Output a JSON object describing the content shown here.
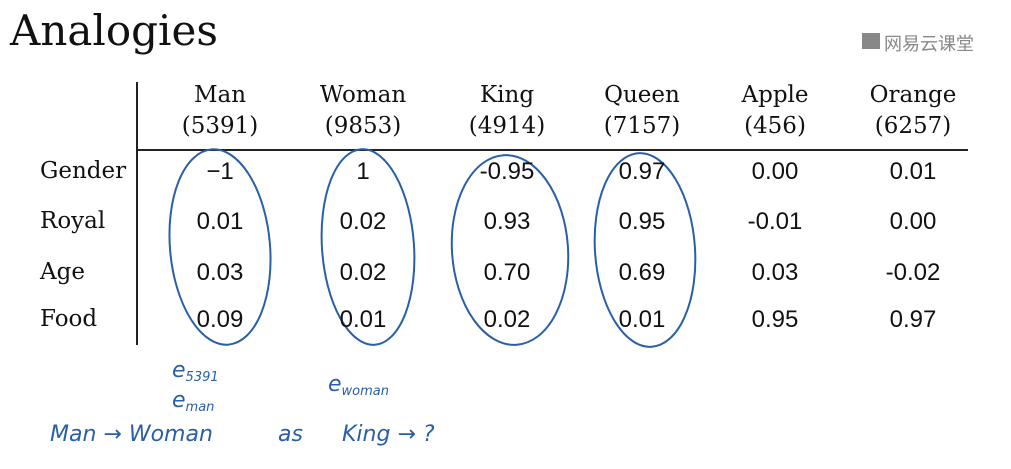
{
  "title": "Analogies",
  "logo": "网易云课堂",
  "table": {
    "columns": [
      {
        "word": "Man",
        "index": "(5391)"
      },
      {
        "word": "Woman",
        "index": "(9853)"
      },
      {
        "word": "King",
        "index": "(4914)"
      },
      {
        "word": "Queen",
        "index": "(7157)"
      },
      {
        "word": "Apple",
        "index": "(456)"
      },
      {
        "word": "Orange",
        "index": "(6257)"
      }
    ],
    "rows": [
      {
        "label": "Gender",
        "values": [
          "−1",
          "1",
          "-0.95",
          "0.97",
          "0.00",
          "0.01"
        ]
      },
      {
        "label": "Royal",
        "values": [
          "0.01",
          "0.02",
          "0.93",
          "0.95",
          "-0.01",
          "0.00"
        ]
      },
      {
        "label": "Age",
        "values": [
          "0.03",
          "0.02",
          "0.70",
          "0.69",
          "0.03",
          "-0.02"
        ]
      },
      {
        "label": "Food",
        "values": [
          "0.09",
          "0.01",
          "0.02",
          "0.01",
          "0.95",
          "0.97"
        ]
      }
    ]
  },
  "annotations": [
    {
      "base": "e",
      "sub": "5391"
    },
    {
      "base": "e",
      "sub": "man"
    },
    {
      "base": "e",
      "sub": "woman"
    }
  ],
  "analogy": [
    "Man → Woman",
    "as",
    "King → ?"
  ]
}
